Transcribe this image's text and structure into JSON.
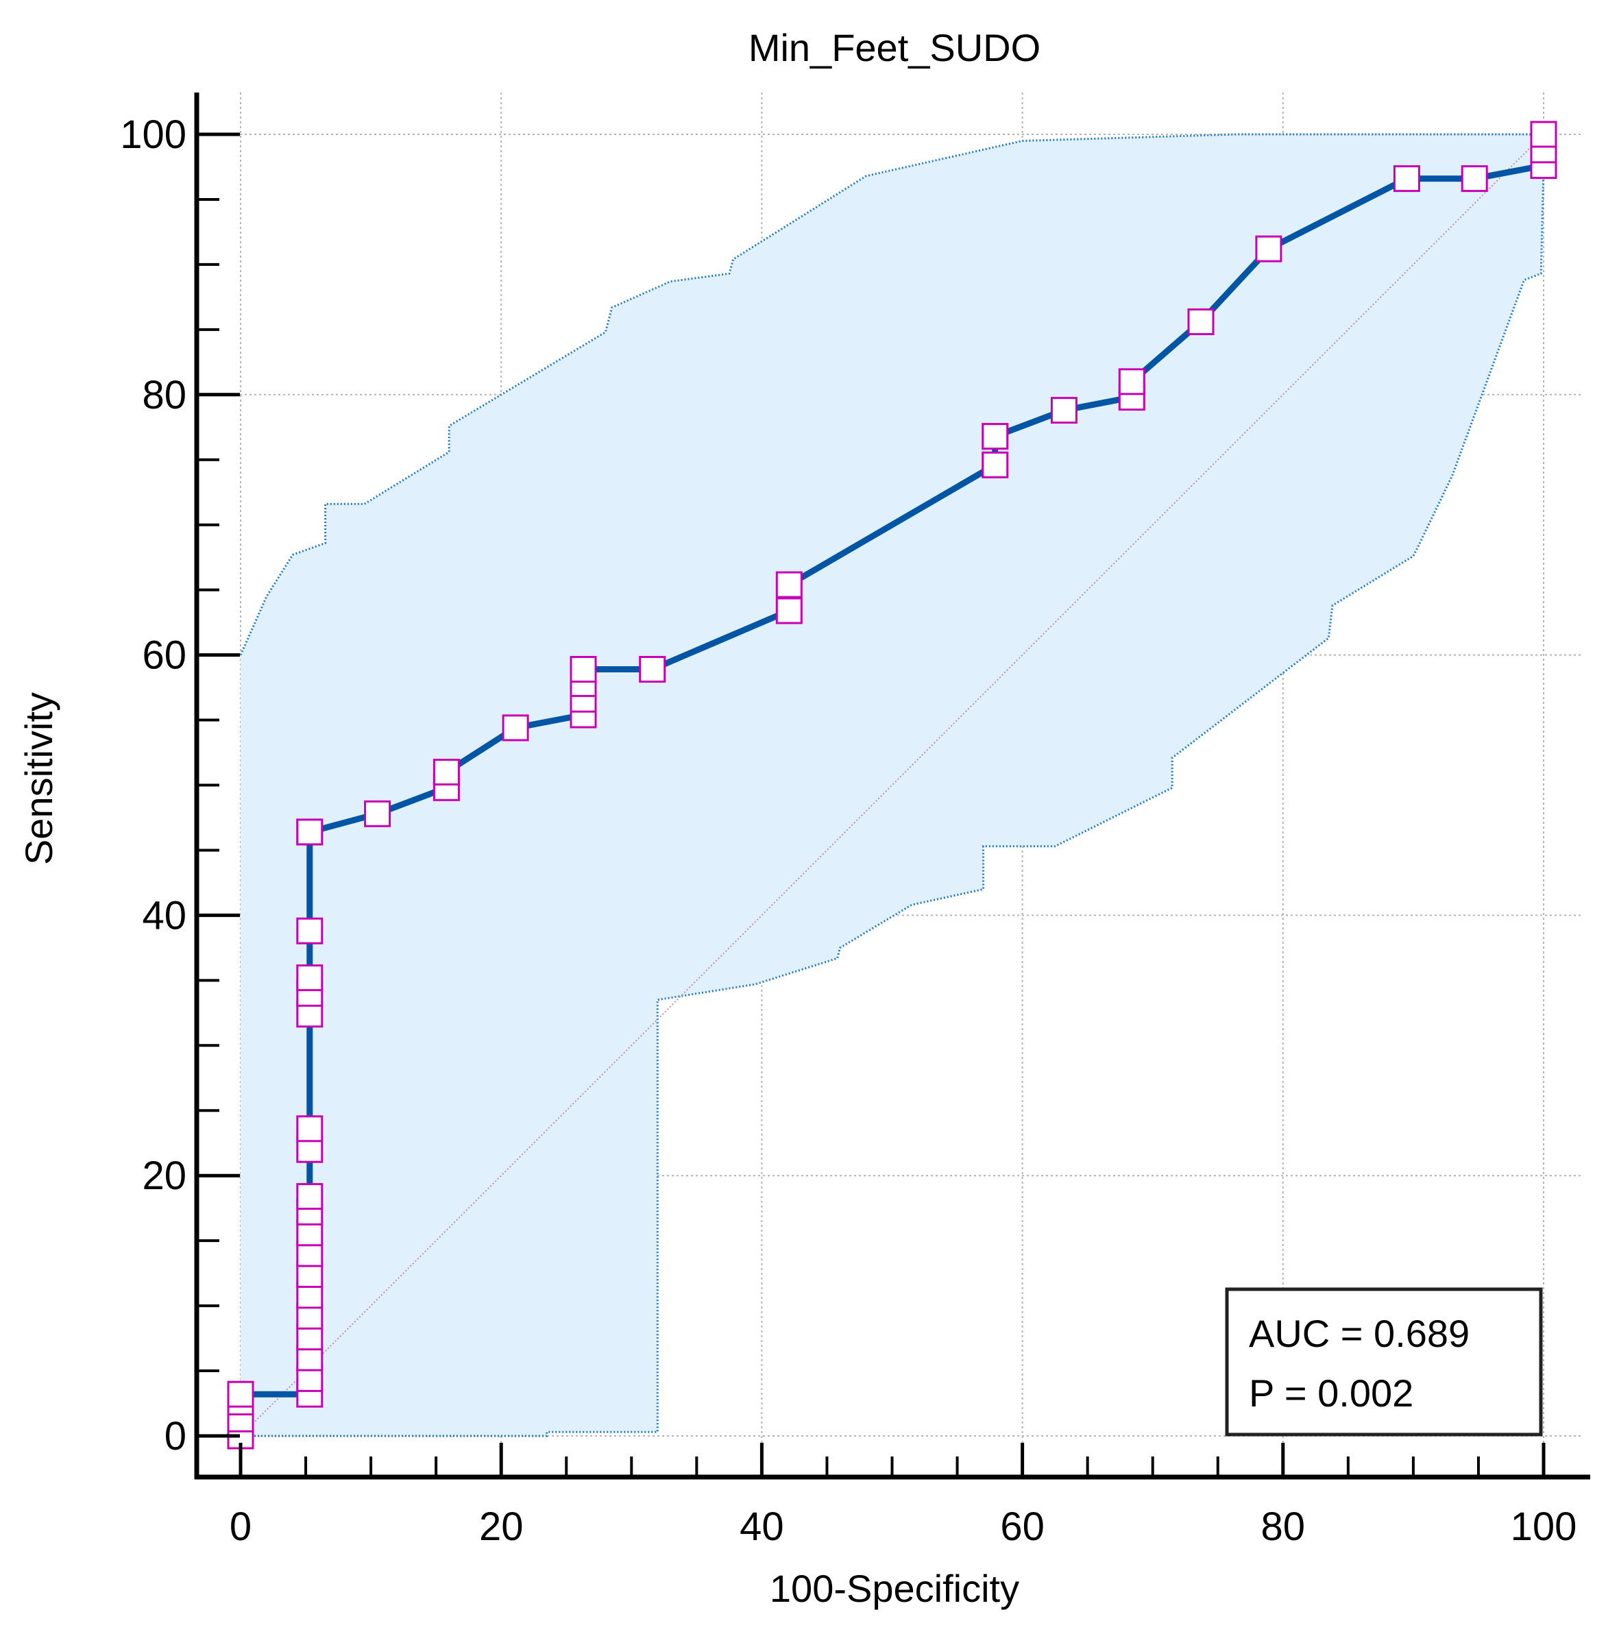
{
  "chart_data": {
    "type": "line",
    "title": "Min_Feet_SUDO",
    "xlabel": "100-Specificity",
    "ylabel": "Sensitivity",
    "xlim": [
      0,
      100
    ],
    "ylim": [
      0,
      100
    ],
    "xticks": [
      "0",
      "20",
      "40",
      "60",
      "80",
      "100"
    ],
    "yticks": [
      "0",
      "20",
      "40",
      "60",
      "80",
      "100"
    ],
    "x_minor_step": 5,
    "y_minor_step": 5,
    "grid": true,
    "annotation": {
      "lines": [
        "AUC = 0.689",
        "P = 0.002"
      ],
      "placement": "bottom-right"
    },
    "colors": {
      "roc_line": "#0055a4",
      "marker": "#c800b4",
      "ci_fill": "#e0f0fc",
      "ci_border": "#1e78c8",
      "diagonal": "#c090a0",
      "grid": "#b4b4b4"
    },
    "series": [
      {
        "name": "ROC curve",
        "x": [
          0,
          0,
          0,
          0,
          5.3,
          5.3,
          5.3,
          5.3,
          5.3,
          5.3,
          5.3,
          5.3,
          5.3,
          5.3,
          5.3,
          5.3,
          5.3,
          5.3,
          5.3,
          5.3,
          5.3,
          5.3,
          5.3,
          10.5,
          15.8,
          15.8,
          21.1,
          26.3,
          26.3,
          26.3,
          26.3,
          31.6,
          42.1,
          42.1,
          57.9,
          57.9,
          63.2,
          68.4,
          68.4,
          73.7,
          78.9,
          89.5,
          94.7,
          100,
          100,
          100
        ],
        "y": [
          0,
          1.3,
          2.6,
          3.2,
          3.2,
          4.4,
          6,
          7.6,
          9.2,
          10.8,
          12.4,
          14,
          15.6,
          17.2,
          18.4,
          22,
          23.6,
          32.4,
          34,
          35.2,
          38.8,
          46.4,
          46.4,
          47.8,
          49.8,
          51,
          54.4,
          55.4,
          56.6,
          57.8,
          58.9,
          58.9,
          63.4,
          65.4,
          74.6,
          76.8,
          78.8,
          79.8,
          81,
          85.6,
          91.2,
          96.6,
          96.6,
          97.6,
          98.8,
          100
        ]
      },
      {
        "name": "Upper 95% CI",
        "x": [
          0,
          2,
          4,
          6.5,
          6.5,
          9.5,
          16,
          16,
          28,
          28.5,
          33,
          37.5,
          37.8,
          48,
          60,
          76.5,
          100
        ],
        "y": [
          60,
          64.5,
          67.7,
          68.6,
          71.6,
          71.6,
          75.6,
          77.6,
          84.8,
          86.7,
          88.7,
          89.3,
          90.4,
          96.8,
          99.5,
          100,
          100
        ]
      },
      {
        "name": "Lower 95% CI",
        "x": [
          0,
          23.5,
          23.5,
          32,
          32,
          39.5,
          45.8,
          46,
          51.5,
          57,
          57,
          62.5,
          71.5,
          71.5,
          83.5,
          83.8,
          90,
          90.5,
          93,
          98.5,
          99.8,
          100,
          100
        ],
        "y": [
          0,
          0,
          0.3,
          0.3,
          33.5,
          34.7,
          36.7,
          37.5,
          40.8,
          42,
          45.3,
          45.3,
          49.8,
          52.1,
          61.3,
          63.8,
          67.6,
          68.6,
          73.8,
          88.8,
          89.3,
          97.6,
          100
        ]
      },
      {
        "name": "Reference line",
        "x": [
          0,
          100
        ],
        "y": [
          0,
          100
        ]
      }
    ]
  }
}
